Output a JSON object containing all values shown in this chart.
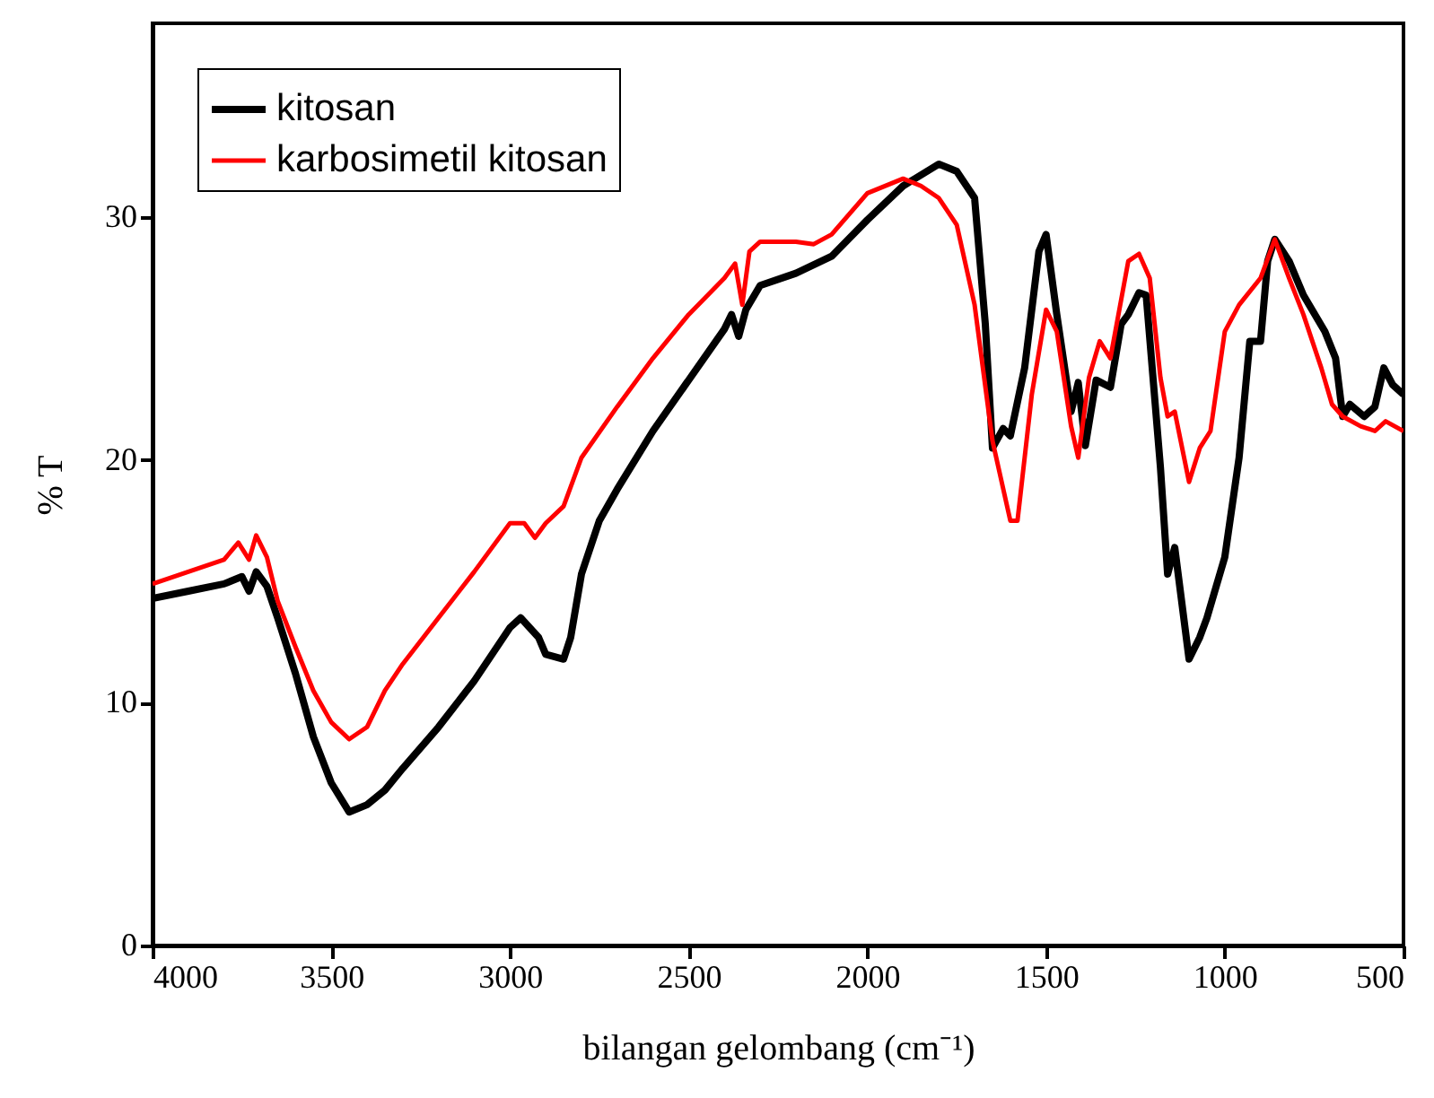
{
  "chart_data": {
    "type": "line",
    "xlabel": "bilangan gelombang (cm⁻¹)",
    "ylabel": "% T",
    "xlim": [
      4000,
      500
    ],
    "xticks": [
      4000,
      3500,
      3000,
      2500,
      2000,
      1500,
      1000,
      500
    ],
    "ylim": [
      0,
      38
    ],
    "yticks": [
      0,
      10,
      20,
      30
    ],
    "legend": "top left",
    "grid": false,
    "marker": "none",
    "line_style": "solid",
    "series": [
      {
        "name": "kitosan",
        "color": "#000000",
        "x": [
          4000,
          3900,
          3800,
          3750,
          3730,
          3710,
          3680,
          3650,
          3600,
          3550,
          3500,
          3450,
          3400,
          3350,
          3300,
          3200,
          3100,
          3000,
          2970,
          2920,
          2900,
          2850,
          2830,
          2800,
          2750,
          2700,
          2600,
          2500,
          2400,
          2380,
          2360,
          2340,
          2300,
          2200,
          2100,
          2000,
          1900,
          1800,
          1750,
          1700,
          1670,
          1650,
          1620,
          1600,
          1560,
          1520,
          1500,
          1470,
          1430,
          1410,
          1390,
          1360,
          1320,
          1290,
          1270,
          1240,
          1220,
          1180,
          1160,
          1140,
          1100,
          1070,
          1050,
          1000,
          960,
          930,
          900,
          880,
          860,
          820,
          780,
          720,
          690,
          670,
          650,
          610,
          580,
          555,
          530,
          500
        ],
        "values": [
          14.3,
          14.6,
          14.9,
          15.2,
          14.6,
          15.4,
          14.8,
          13.5,
          11.2,
          8.6,
          6.7,
          5.5,
          5.8,
          6.4,
          7.3,
          9.0,
          10.9,
          13.1,
          13.5,
          12.7,
          12.0,
          11.8,
          12.7,
          15.3,
          17.5,
          18.8,
          21.2,
          23.3,
          25.4,
          26.0,
          25.1,
          26.2,
          27.2,
          27.7,
          28.4,
          29.9,
          31.3,
          32.2,
          31.9,
          30.8,
          25.6,
          20.5,
          21.3,
          21.0,
          23.8,
          28.6,
          29.3,
          26.0,
          22.0,
          23.2,
          20.6,
          23.3,
          23.0,
          25.6,
          26.0,
          26.9,
          26.8,
          19.7,
          15.3,
          16.4,
          11.8,
          12.7,
          13.5,
          16.0,
          20.1,
          24.9,
          24.9,
          28.2,
          29.1,
          28.2,
          26.8,
          25.3,
          24.2,
          21.8,
          22.3,
          21.8,
          22.2,
          23.8,
          23.1,
          22.7
        ]
      },
      {
        "name": "karbosimetil kitosan",
        "color": "#ff0000",
        "x": [
          4000,
          3900,
          3800,
          3760,
          3730,
          3710,
          3680,
          3650,
          3600,
          3550,
          3500,
          3450,
          3400,
          3350,
          3300,
          3200,
          3100,
          3000,
          2960,
          2930,
          2900,
          2850,
          2800,
          2700,
          2600,
          2500,
          2400,
          2370,
          2350,
          2330,
          2300,
          2200,
          2150,
          2100,
          2000,
          1900,
          1850,
          1800,
          1750,
          1700,
          1650,
          1600,
          1580,
          1540,
          1500,
          1470,
          1430,
          1410,
          1380,
          1350,
          1320,
          1270,
          1240,
          1210,
          1180,
          1160,
          1140,
          1100,
          1070,
          1040,
          1000,
          960,
          900,
          860,
          820,
          780,
          730,
          700,
          670,
          620,
          580,
          550,
          500
        ],
        "values": [
          14.9,
          15.4,
          15.9,
          16.6,
          15.9,
          16.9,
          16.0,
          14.2,
          12.3,
          10.5,
          9.2,
          8.5,
          9.0,
          10.5,
          11.6,
          13.5,
          15.4,
          17.4,
          17.4,
          16.8,
          17.4,
          18.1,
          20.1,
          22.2,
          24.2,
          26.0,
          27.5,
          28.1,
          26.4,
          28.6,
          29.0,
          29.0,
          28.9,
          29.3,
          31.0,
          31.6,
          31.3,
          30.8,
          29.7,
          26.4,
          20.8,
          17.5,
          17.5,
          22.7,
          26.2,
          25.3,
          21.4,
          20.1,
          23.4,
          24.9,
          24.2,
          28.2,
          28.5,
          27.5,
          23.4,
          21.8,
          22.0,
          19.1,
          20.5,
          21.2,
          25.3,
          26.4,
          27.5,
          29.1,
          27.5,
          26.0,
          23.8,
          22.3,
          21.8,
          21.4,
          21.2,
          21.6,
          21.2
        ]
      }
    ]
  }
}
